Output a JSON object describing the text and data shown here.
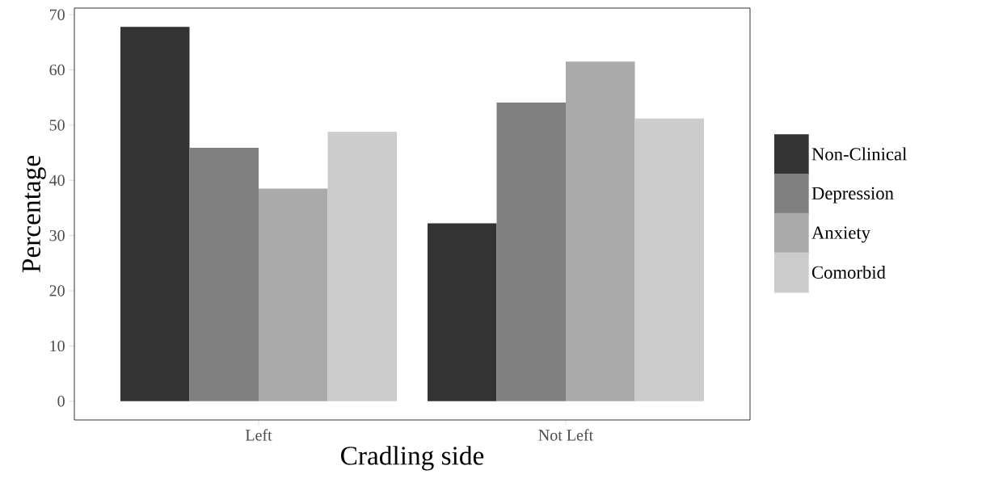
{
  "chart_data": {
    "type": "bar",
    "xlabel": "Cradling side",
    "ylabel": "Percentage",
    "categories": [
      "Left",
      "Not Left"
    ],
    "series": [
      {
        "name": "Non-Clinical",
        "color": "#333333",
        "values": [
          67.8,
          32.2
        ]
      },
      {
        "name": "Depression",
        "color": "#808080",
        "values": [
          45.9,
          54.1
        ]
      },
      {
        "name": "Anxiety",
        "color": "#aaaaaa",
        "values": [
          38.5,
          61.5
        ]
      },
      {
        "name": "Comorbid",
        "color": "#cccccc",
        "values": [
          48.8,
          51.2
        ]
      }
    ],
    "ylim": [
      -3.4,
      71.2
    ],
    "yticks": [
      0,
      10,
      20,
      30,
      40,
      50,
      60,
      70
    ],
    "legend": "right",
    "grid": false
  }
}
